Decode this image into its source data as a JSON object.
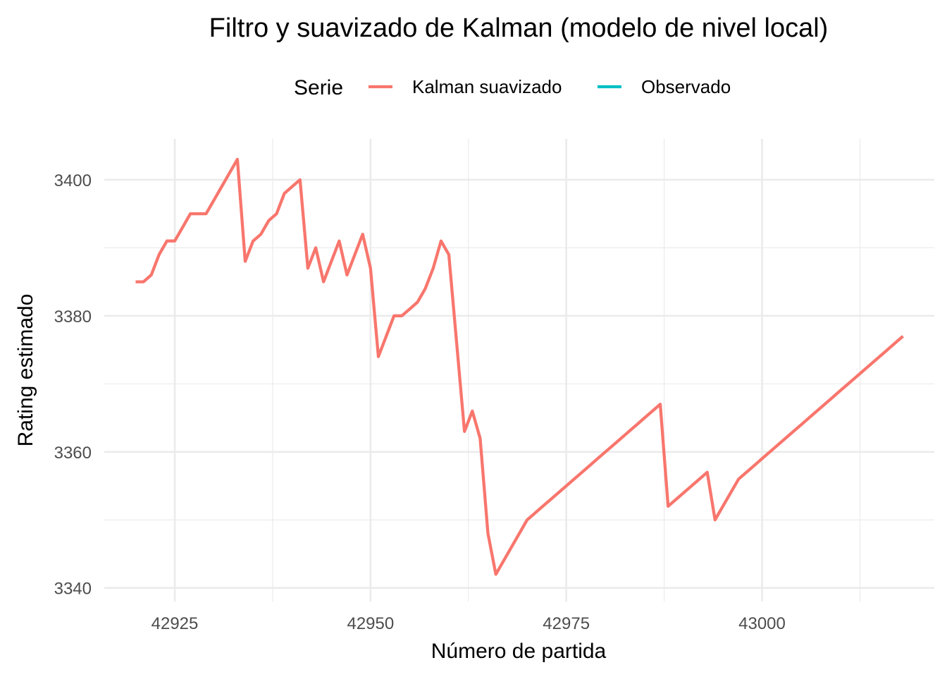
{
  "chart_data": {
    "type": "line",
    "title": "Filtro y suavizado de Kalman (modelo de nivel local)",
    "xlabel": "Número de partida",
    "ylabel": "Rating estimado",
    "xlim": [
      42916,
      43022
    ],
    "ylim": [
      3338,
      3406
    ],
    "x_ticks": [
      42925,
      42950,
      42975,
      43000
    ],
    "y_ticks": [
      3340,
      3360,
      3380,
      3400
    ],
    "grid": true,
    "legend": {
      "title": "Serie",
      "position": "top"
    },
    "series": [
      {
        "name": "Kalman suavizado",
        "color": "#F8766D",
        "x": [
          42920,
          42921,
          42922,
          42923,
          42924,
          42925,
          42926,
          42927,
          42928,
          42929,
          42930,
          42931,
          42932,
          42933,
          42934,
          42935,
          42936,
          42937,
          42938,
          42939,
          42940,
          42941,
          42942,
          42943,
          42944,
          42945,
          42946,
          42947,
          42948,
          42949,
          42950,
          42951,
          42952,
          42953,
          42954,
          42955,
          42956,
          42957,
          42958,
          42959,
          42960,
          42961,
          42962,
          42963,
          42964,
          42965,
          42966,
          42967,
          42968,
          42969,
          42970,
          42971,
          42972,
          42973,
          42974,
          42975,
          42976,
          42977,
          42978,
          42979,
          42980,
          42981,
          42982,
          42983,
          42984,
          42985,
          42986,
          42987,
          42988,
          42989,
          42990,
          42991,
          42992,
          42993,
          42994,
          42995,
          42996,
          42997,
          42998,
          42999,
          43000,
          43001,
          43002,
          43003,
          43004,
          43005,
          43006,
          43007,
          43008,
          43009,
          43010,
          43011,
          43012,
          43013,
          43014,
          43015,
          43016,
          43017,
          43018
        ],
        "values": [
          3385,
          3385,
          3386,
          3389,
          3391,
          3391,
          3393,
          3395,
          3395,
          3395,
          3397,
          3399,
          3401,
          3403,
          3388,
          3391,
          3392,
          3394,
          3395,
          3398,
          3399,
          3400,
          3387,
          3390,
          3385,
          3388,
          3391,
          3386,
          3389,
          3392,
          3387,
          3374,
          3377,
          3380,
          3380,
          3381,
          3382,
          3384,
          3387,
          3391,
          3389,
          3376,
          3363,
          3366,
          3362,
          3348,
          3342,
          3344,
          3346,
          3348,
          3350,
          3351,
          3352,
          3353,
          3354,
          3355,
          3356,
          3357,
          3358,
          3359,
          3360,
          3361,
          3362,
          3363,
          3364,
          3365,
          3366,
          3367,
          3352,
          3353,
          3354,
          3355,
          3356,
          3357,
          3350,
          3352,
          3354,
          3356,
          3357,
          3358,
          3359,
          3360,
          3361,
          3362,
          3363,
          3364,
          3365,
          3366,
          3367,
          3368,
          3369,
          3370,
          3371,
          3372,
          3373,
          3374,
          3375,
          3376,
          3377
        ]
      },
      {
        "name": "Observado",
        "color": "#00BFC4",
        "x": [],
        "values": []
      }
    ]
  }
}
